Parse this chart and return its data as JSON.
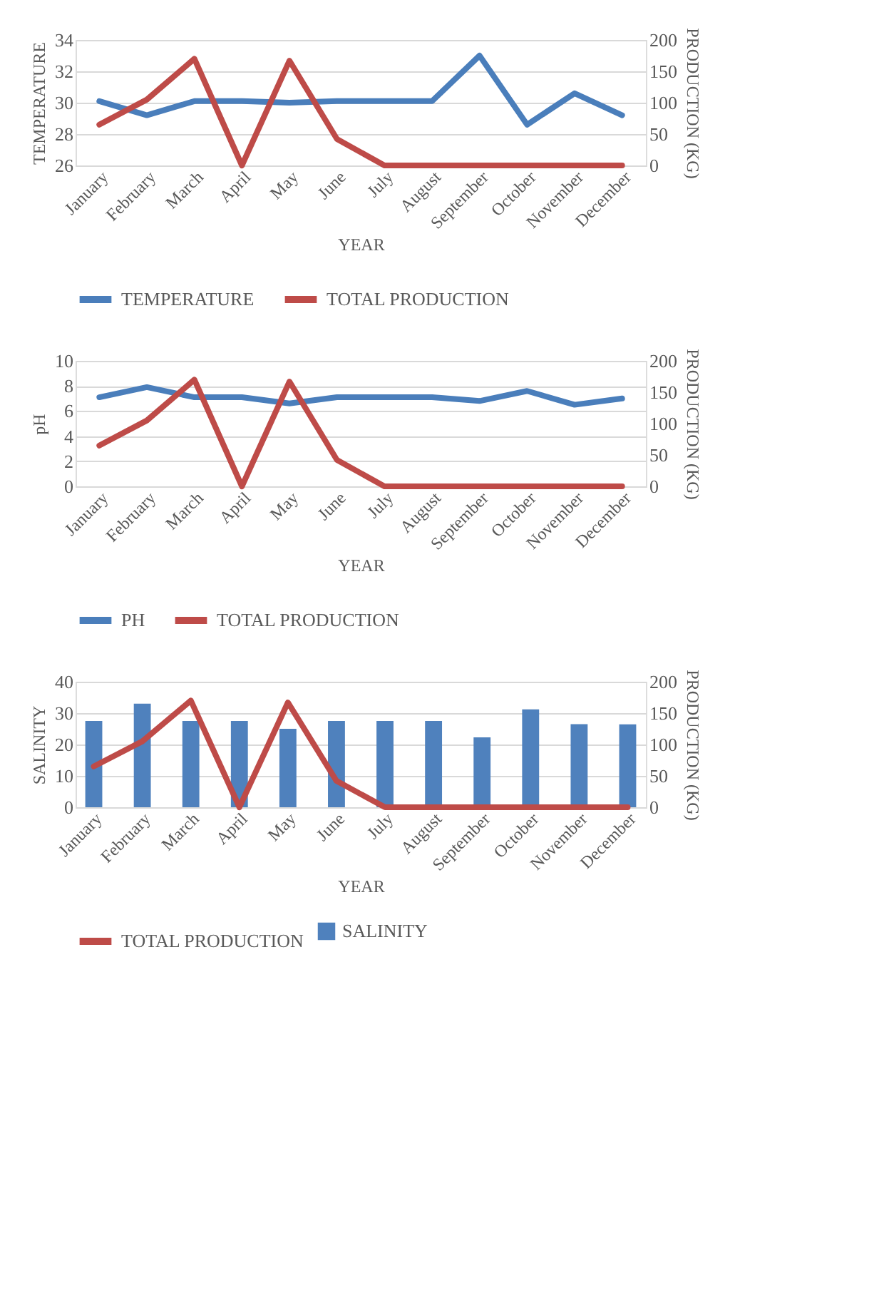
{
  "chart_data": [
    {
      "type": "line",
      "categories": [
        "January",
        "February",
        "March",
        "April",
        "May",
        "June",
        "July",
        "August",
        "September",
        "October",
        "November",
        "December"
      ],
      "xlabel": "YEAR",
      "ylabel": "TEMPERATURE",
      "y2label": "PRODUCTION (KG)",
      "ylim": [
        26,
        34
      ],
      "yticks": [
        26,
        28,
        30,
        32,
        34
      ],
      "y2lim": [
        0,
        200
      ],
      "y2ticks": [
        0,
        50,
        100,
        150,
        200
      ],
      "grid": "y",
      "legend": "bottom",
      "series": [
        {
          "name": "TEMPERATURE",
          "color": "#4a7ebb",
          "values": [
            30.1,
            29.2,
            30.1,
            30.1,
            30.0,
            30.1,
            30.1,
            30.1,
            33.0,
            28.6,
            30.6,
            29.2
          ]
        },
        {
          "name": "TOTAL PRODUCTION",
          "color": "#be4b48",
          "axis": "y2",
          "values": [
            65,
            105,
            170,
            0,
            167,
            42,
            0,
            0,
            0,
            0,
            0,
            0
          ]
        }
      ]
    },
    {
      "type": "line",
      "categories": [
        "January",
        "February",
        "March",
        "April",
        "May",
        "June",
        "July",
        "August",
        "September",
        "October",
        "November",
        "December"
      ],
      "xlabel": "YEAR",
      "ylabel": "pH",
      "y2label": "PRODUCTION (KG)",
      "ylim": [
        0,
        10
      ],
      "yticks": [
        0,
        2,
        4,
        6,
        8,
        10
      ],
      "y2lim": [
        0,
        200
      ],
      "y2ticks": [
        0,
        50,
        100,
        150,
        200
      ],
      "grid": "y",
      "legend": "bottom",
      "series": [
        {
          "name": "PH",
          "color": "#4a7ebb",
          "values": [
            7.1,
            7.9,
            7.1,
            7.1,
            6.6,
            7.1,
            7.1,
            7.1,
            6.8,
            7.6,
            6.5,
            7.0
          ]
        },
        {
          "name": "TOTAL PRODUCTION",
          "color": "#be4b48",
          "axis": "y2",
          "values": [
            65,
            105,
            170,
            0,
            167,
            42,
            0,
            0,
            0,
            0,
            0,
            0
          ]
        }
      ]
    },
    {
      "type": "bar",
      "categories": [
        "January",
        "February",
        "March",
        "April",
        "May",
        "June",
        "July",
        "August",
        "September",
        "October",
        "November",
        "December"
      ],
      "xlabel": "YEAR",
      "ylabel": "SALINITY",
      "y2label": "PRODUCTION (KG)",
      "ylim": [
        0,
        40
      ],
      "yticks": [
        0,
        10,
        20,
        30,
        40
      ],
      "y2lim": [
        0,
        200
      ],
      "y2ticks": [
        0,
        50,
        100,
        150,
        200
      ],
      "grid": "y",
      "legend": "bottom",
      "series": [
        {
          "name": "SALINITY",
          "color": "#4f81bd",
          "values": [
            27.5,
            33,
            27.5,
            27.5,
            25,
            27.5,
            27.5,
            27.5,
            22.3,
            31.2,
            26.5,
            26.4
          ]
        },
        {
          "name": "TOTAL PRODUCTION",
          "type": "line",
          "color": "#be4b48",
          "axis": "y2",
          "values": [
            65,
            105,
            170,
            0,
            167,
            42,
            0,
            0,
            0,
            0,
            0,
            0
          ]
        }
      ]
    }
  ]
}
